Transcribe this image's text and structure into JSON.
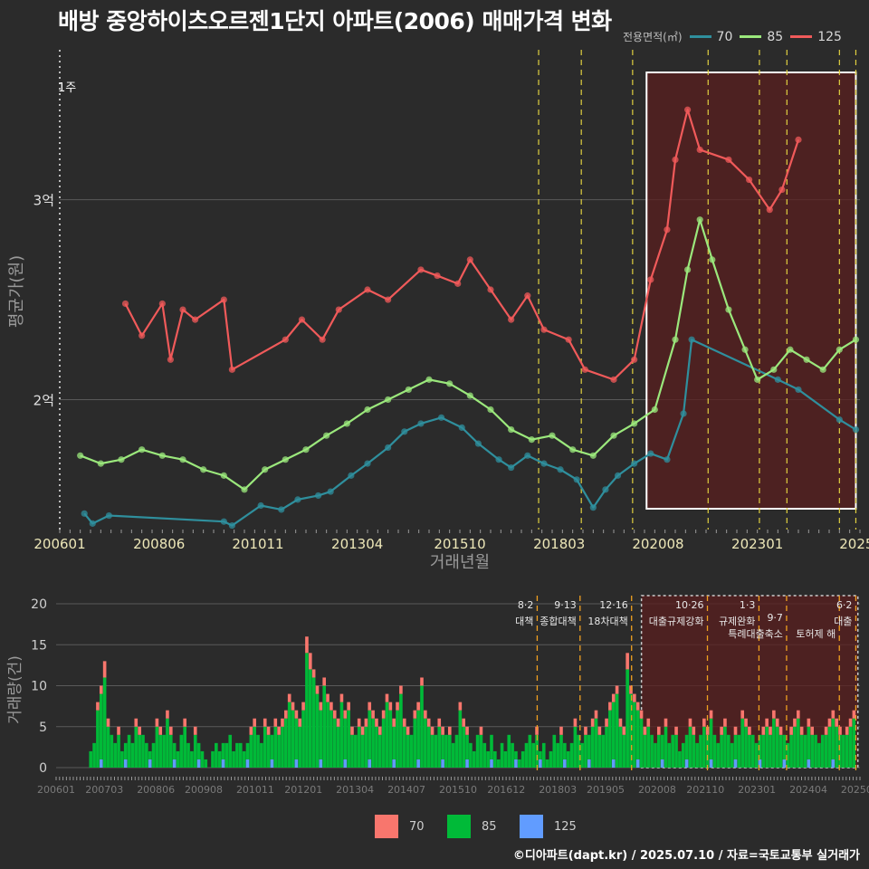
{
  "title": "배방 중앙하이츠오르젠1단지 아파트(2006) 매매가격 변화",
  "legend_top": {
    "title": "전용면적(㎡)",
    "items": [
      {
        "label": "70",
        "color": "#2f8f9d"
      },
      {
        "label": "85",
        "color": "#9be87c"
      },
      {
        "label": "125",
        "color": "#f05a5a"
      }
    ]
  },
  "legend_bottom": {
    "items": [
      {
        "label": "70",
        "color": "#f8766d"
      },
      {
        "label": "85",
        "color": "#00ba38"
      },
      {
        "label": "125",
        "color": "#619cff"
      }
    ]
  },
  "footer": "©디아파트(dapt.kr) / 2025.07.10 / 자료=국토교통부 실거래가",
  "chart_data": [
    {
      "type": "line",
      "title": "배방 중앙하이츠오르젠1단지 아파트(2006) 매매가격 변화",
      "xlabel": "거래년월",
      "ylabel": "평균가(원)",
      "xlim": [
        2006.0,
        2025.5
      ],
      "ylim": [
        1.35,
        3.75
      ],
      "y_unit": "억",
      "x_tick_labels": [
        "200601",
        "200806",
        "201011",
        "201304",
        "201510",
        "201803",
        "202008",
        "202301",
        "2025"
      ],
      "x_tick_values": [
        2006.0,
        2008.42,
        2010.83,
        2013.25,
        2015.75,
        2018.17,
        2020.58,
        2023.0,
        2025.42
      ],
      "y_tick_labels": [
        "2억",
        "3억"
      ],
      "y_tick_values": [
        2.0,
        3.0
      ],
      "annotation": "1주",
      "highlight_range": [
        2020.3,
        2025.4
      ],
      "policy_lines": [
        2017.67,
        2018.71,
        2019.96,
        2021.8,
        2023.05,
        2023.72,
        2025.0,
        2025.4
      ],
      "series": [
        {
          "name": "70",
          "x": [
            2006.6,
            2006.8,
            2007.2,
            2010.0,
            2010.2,
            2010.9,
            2011.4,
            2011.8,
            2012.3,
            2012.6,
            2013.1,
            2013.5,
            2014.0,
            2014.4,
            2014.8,
            2015.3,
            2015.8,
            2016.2,
            2016.7,
            2017.0,
            2017.4,
            2017.8,
            2018.2,
            2018.6,
            2019.0,
            2019.3,
            2019.6,
            2020.0,
            2020.4,
            2020.8,
            2021.2,
            2021.4,
            2023.5,
            2024.0,
            2025.0,
            2025.4
          ],
          "y": [
            1.43,
            1.38,
            1.42,
            1.39,
            1.37,
            1.47,
            1.45,
            1.5,
            1.52,
            1.54,
            1.62,
            1.68,
            1.76,
            1.84,
            1.88,
            1.91,
            1.86,
            1.78,
            1.7,
            1.66,
            1.72,
            1.68,
            1.65,
            1.6,
            1.46,
            1.55,
            1.62,
            1.68,
            1.73,
            1.7,
            1.93,
            2.3,
            2.1,
            2.05,
            1.9,
            1.85
          ]
        },
        {
          "name": "85",
          "x": [
            2006.5,
            2007.0,
            2007.5,
            2008.0,
            2008.5,
            2009.0,
            2009.5,
            2010.0,
            2010.5,
            2011.0,
            2011.5,
            2012.0,
            2012.5,
            2013.0,
            2013.5,
            2014.0,
            2014.5,
            2015.0,
            2015.5,
            2016.0,
            2016.5,
            2017.0,
            2017.5,
            2018.0,
            2018.5,
            2019.0,
            2019.5,
            2020.0,
            2020.5,
            2021.0,
            2021.3,
            2021.6,
            2021.9,
            2022.3,
            2022.7,
            2023.0,
            2023.4,
            2023.8,
            2024.2,
            2024.6,
            2025.0,
            2025.4
          ],
          "y": [
            1.72,
            1.68,
            1.7,
            1.75,
            1.72,
            1.7,
            1.65,
            1.62,
            1.55,
            1.65,
            1.7,
            1.75,
            1.82,
            1.88,
            1.95,
            2.0,
            2.05,
            2.1,
            2.08,
            2.02,
            1.95,
            1.85,
            1.8,
            1.82,
            1.75,
            1.72,
            1.82,
            1.88,
            1.95,
            2.3,
            2.65,
            2.9,
            2.7,
            2.45,
            2.25,
            2.1,
            2.15,
            2.25,
            2.2,
            2.15,
            2.25,
            2.3
          ]
        },
        {
          "name": "125",
          "x": [
            2007.6,
            2008.0,
            2008.5,
            2008.7,
            2009.0,
            2009.3,
            2010.0,
            2010.2,
            2011.5,
            2011.9,
            2012.4,
            2012.8,
            2013.5,
            2014.0,
            2014.8,
            2015.2,
            2015.7,
            2016.0,
            2016.5,
            2017.0,
            2017.4,
            2017.8,
            2018.4,
            2018.8,
            2019.5,
            2020.0,
            2020.4,
            2020.8,
            2021.0,
            2021.3,
            2021.6,
            2022.3,
            2022.8,
            2023.3,
            2023.6,
            2024.0
          ],
          "y": [
            2.48,
            2.32,
            2.48,
            2.2,
            2.45,
            2.4,
            2.5,
            2.15,
            2.3,
            2.4,
            2.3,
            2.45,
            2.55,
            2.5,
            2.65,
            2.62,
            2.58,
            2.7,
            2.55,
            2.4,
            2.52,
            2.35,
            2.3,
            2.15,
            2.1,
            2.2,
            2.6,
            2.85,
            3.2,
            3.45,
            3.25,
            3.2,
            3.1,
            2.95,
            3.05,
            3.3
          ]
        }
      ]
    },
    {
      "type": "bar",
      "title": "거래량",
      "ylabel": "거래량(건)",
      "xlim": [
        2006.0,
        2025.5
      ],
      "ylim": [
        0,
        21
      ],
      "y_tick_values": [
        0,
        5,
        10,
        15,
        20
      ],
      "x_tick_labels": [
        "200601",
        "200703",
        "200806",
        "200908",
        "201011",
        "201201",
        "201304",
        "201407",
        "201510",
        "201612",
        "201803",
        "201905",
        "202008",
        "202110",
        "202301",
        "202404",
        "20250"
      ],
      "x_tick_values": [
        2006.0,
        2007.17,
        2008.42,
        2009.58,
        2010.83,
        2012.0,
        2013.25,
        2014.5,
        2015.75,
        2016.92,
        2018.17,
        2019.33,
        2020.58,
        2021.75,
        2023.0,
        2024.25,
        2025.42
      ],
      "monthly_totals": [
        2,
        3,
        8,
        10,
        13,
        6,
        4,
        3,
        5,
        2,
        3,
        4,
        3,
        6,
        5,
        4,
        3,
        2,
        3,
        6,
        5,
        4,
        7,
        5,
        3,
        2,
        4,
        6,
        3,
        2,
        5,
        3,
        2,
        1,
        0,
        2,
        3,
        2,
        3,
        3,
        4,
        2,
        3,
        3,
        2,
        3,
        5,
        6,
        4,
        3,
        6,
        5,
        4,
        6,
        5,
        6,
        7,
        9,
        8,
        7,
        6,
        8,
        16,
        14,
        12,
        10,
        8,
        11,
        9,
        8,
        7,
        6,
        9,
        7,
        8,
        5,
        4,
        6,
        5,
        6,
        8,
        7,
        6,
        5,
        7,
        9,
        8,
        6,
        8,
        10,
        6,
        5,
        4,
        7,
        8,
        11,
        7,
        6,
        5,
        4,
        6,
        5,
        4,
        5,
        3,
        4,
        8,
        6,
        5,
        3,
        2,
        4,
        5,
        3,
        2,
        4,
        2,
        1,
        3,
        2,
        4,
        3,
        2,
        1,
        2,
        3,
        4,
        3,
        5,
        2,
        3,
        1,
        2,
        4,
        3,
        5,
        3,
        2,
        3,
        6,
        4,
        3,
        5,
        4,
        6,
        7,
        5,
        4,
        6,
        8,
        9,
        10,
        6,
        5,
        14,
        10,
        9,
        8,
        7,
        5,
        6,
        4,
        3,
        5,
        4,
        6,
        3,
        4,
        5,
        2,
        3,
        4,
        6,
        5,
        3,
        4,
        6,
        5,
        7,
        4,
        3,
        5,
        6,
        4,
        3,
        5,
        4,
        7,
        6,
        5,
        4,
        3,
        4,
        5,
        6,
        5,
        7,
        6,
        5,
        4,
        3,
        5,
        6,
        7,
        5,
        4,
        6,
        5,
        4,
        3,
        4,
        5,
        6,
        7,
        6,
        5,
        4,
        5,
        6,
        7
      ],
      "policy_labels": [
        {
          "date": "8·2",
          "text": "대책",
          "x": 2017.67
        },
        {
          "date": "9·13",
          "text": "종합대책",
          "x": 2018.71
        },
        {
          "date": "12·16",
          "text": "18차대책",
          "x": 2019.96
        },
        {
          "date": "10·26",
          "text": "대출규제강화",
          "x": 2021.8
        },
        {
          "date": "1·3",
          "text": "규제완화",
          "x": 2023.05
        },
        {
          "date": "9·7",
          "text": "특례대출축소",
          "x": 2023.72
        },
        {
          "date": "",
          "text": "토허제 해",
          "x": 2025.0
        },
        {
          "date": "6·2",
          "text": "대출",
          "x": 2025.4
        }
      ]
    }
  ]
}
